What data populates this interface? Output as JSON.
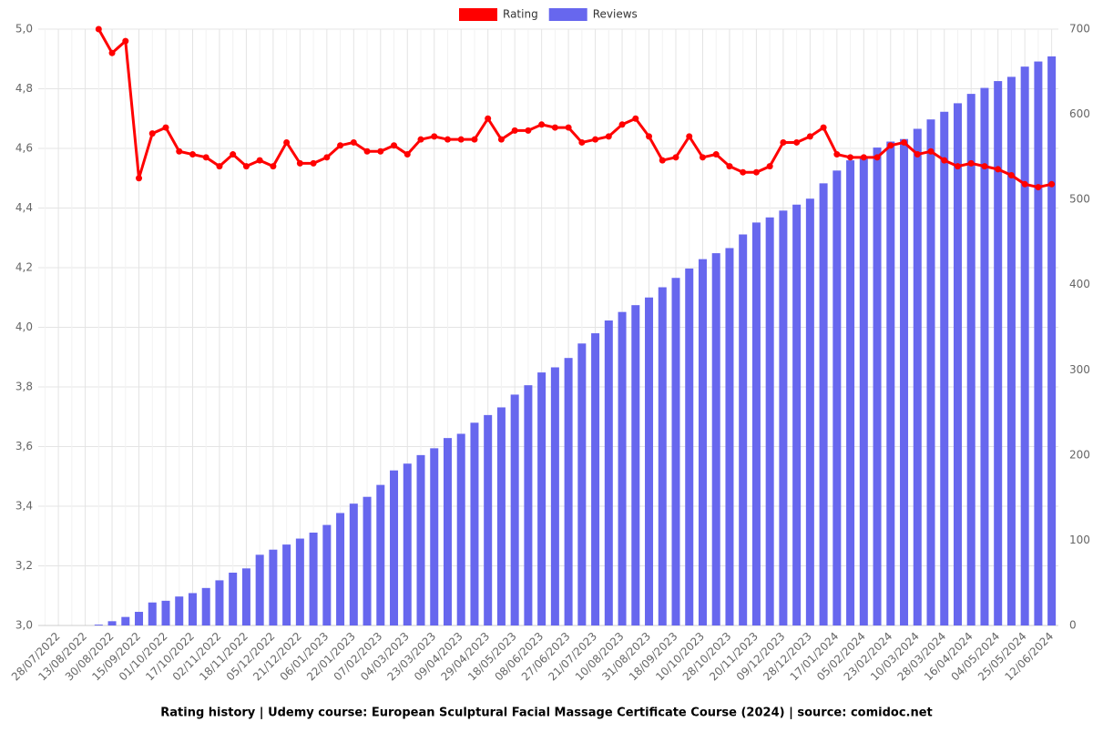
{
  "chart_data": {
    "type": "bar_line",
    "title": "Rating history | Udemy course: European Sculptural Facial Massage Certificate Course (2024) | source: comidoc.net",
    "categories": [
      null,
      "28/07/2022",
      null,
      "13/08/2022",
      null,
      "30/08/2022",
      null,
      "15/09/2022",
      null,
      "01/10/2022",
      null,
      "17/10/2022",
      null,
      "02/11/2022",
      null,
      "18/11/2022",
      null,
      "05/12/2022",
      null,
      "21/12/2022",
      null,
      "06/01/2023",
      null,
      "22/01/2023",
      null,
      "07/02/2023",
      null,
      "04/03/2023",
      null,
      "23/03/2023",
      null,
      "09/04/2023",
      null,
      "29/04/2023",
      null,
      "18/05/2023",
      null,
      "08/06/2023",
      null,
      "27/06/2023",
      null,
      "21/07/2023",
      null,
      "10/08/2023",
      null,
      "31/08/2023",
      null,
      "18/09/2023",
      null,
      "10/10/2023",
      null,
      "28/10/2023",
      null,
      "20/11/2023",
      null,
      "09/12/2023",
      null,
      "28/12/2023",
      null,
      "17/01/2024",
      null,
      "05/02/2024",
      null,
      "23/02/2024",
      null,
      "10/03/2024",
      null,
      "28/03/2024",
      null,
      "16/04/2024",
      null,
      "04/05/2024",
      null,
      "25/05/2024",
      null,
      "12/06/2024"
    ],
    "series": [
      {
        "name": "Rating",
        "kind": "line",
        "color": "#ff0000",
        "axis": "y",
        "values": [
          null,
          null,
          null,
          null,
          5.0,
          4.92,
          4.96,
          4.5,
          4.65,
          4.67,
          4.59,
          4.58,
          4.57,
          4.54,
          4.58,
          4.54,
          4.56,
          4.54,
          4.62,
          4.55,
          4.55,
          4.57,
          4.61,
          4.62,
          4.59,
          4.59,
          4.61,
          4.58,
          4.63,
          4.64,
          4.63,
          4.63,
          4.63,
          4.7,
          4.63,
          4.66,
          4.66,
          4.68,
          4.67,
          4.67,
          4.62,
          4.63,
          4.64,
          4.68,
          4.7,
          4.64,
          4.56,
          4.57,
          4.64,
          4.57,
          4.58,
          4.54,
          4.52,
          4.52,
          4.54,
          4.62,
          4.62,
          4.64,
          4.67,
          4.58,
          4.57,
          4.57,
          4.57,
          4.61,
          4.62,
          4.58,
          4.59,
          4.56,
          4.54,
          4.55,
          4.54,
          4.53,
          4.51,
          4.48,
          4.47,
          4.48
        ]
      },
      {
        "name": "Reviews",
        "kind": "bar",
        "color": "#6767ee",
        "axis": "y2",
        "values": [
          null,
          null,
          null,
          null,
          1,
          5,
          10,
          16,
          27,
          29,
          34,
          38,
          44,
          53,
          62,
          67,
          83,
          89,
          95,
          102,
          109,
          118,
          132,
          143,
          151,
          165,
          182,
          190,
          200,
          208,
          220,
          225,
          238,
          247,
          256,
          271,
          282,
          297,
          303,
          314,
          331,
          343,
          358,
          368,
          376,
          385,
          397,
          408,
          419,
          430,
          437,
          443,
          459,
          473,
          479,
          487,
          494,
          501,
          519,
          534,
          546,
          550,
          561,
          568,
          571,
          583,
          594,
          603,
          613,
          624,
          631,
          639,
          644,
          656,
          662,
          668
        ]
      }
    ],
    "ylim": [
      3.0,
      5.0
    ],
    "yticks": [
      {
        "value": 3.0,
        "label": "3,0"
      },
      {
        "value": 3.2,
        "label": "3,2"
      },
      {
        "value": 3.4,
        "label": "3,4"
      },
      {
        "value": 3.6,
        "label": "3,6"
      },
      {
        "value": 3.8,
        "label": "3,8"
      },
      {
        "value": 4.0,
        "label": "4,0"
      },
      {
        "value": 4.2,
        "label": "4,2"
      },
      {
        "value": 4.4,
        "label": "4,4"
      },
      {
        "value": 4.6,
        "label": "4,6"
      },
      {
        "value": 4.8,
        "label": "4,8"
      },
      {
        "value": 5.0,
        "label": "5,0"
      }
    ],
    "y2lim": [
      0,
      700
    ],
    "y2ticks": [
      0,
      100,
      200,
      300,
      400,
      500,
      600,
      700
    ],
    "grid": true,
    "legend": "top"
  }
}
